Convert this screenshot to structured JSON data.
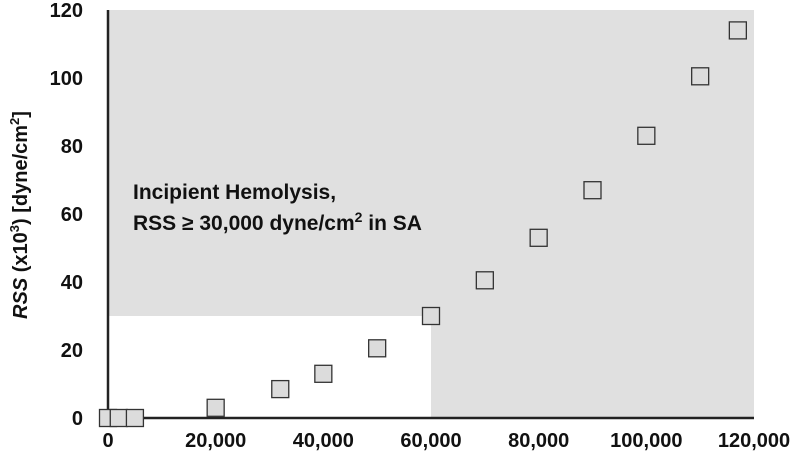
{
  "chart_data": {
    "type": "scatter",
    "x": [
      0,
      2000,
      5000,
      20000,
      32000,
      40000,
      50000,
      60000,
      70000,
      80000,
      90000,
      100000,
      110000,
      117000
    ],
    "y": [
      0,
      0,
      0,
      3,
      8.5,
      13,
      20.5,
      30,
      40.5,
      53,
      67,
      83,
      100.5,
      114
    ],
    "xlim": [
      0,
      120000
    ],
    "ylim": [
      0,
      120
    ],
    "x_ticks": [
      "0",
      "20,000",
      "40,000",
      "60,000",
      "80,000",
      "100,000",
      "120,000"
    ],
    "y_ticks": [
      "0",
      "20",
      "40",
      "60",
      "80",
      "100",
      "120"
    ],
    "ylabel": {
      "italic_part": "RSS",
      "rest_before_sup": " (x10",
      "sup1": "3",
      "mid": ") [dyne/cm",
      "sup2": "2",
      "end": "]"
    },
    "xlabel": "",
    "title": "",
    "region": {
      "x_threshold": 60000,
      "y_threshold": 30,
      "color": "#e0e0e0"
    },
    "marker": {
      "shape": "square",
      "fill": "#dcdcdc",
      "stroke": "#333333"
    },
    "annotation": {
      "line1": "Incipient Hemolysis,",
      "line2_before_sup": "RSS ≥ 30,000 dyne/cm",
      "line2_sup": "2",
      "line2_after_sup": " in SA"
    }
  }
}
